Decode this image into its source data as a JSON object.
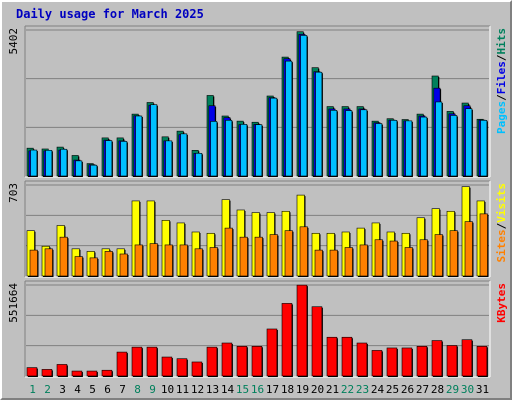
{
  "title": "Daily usage for March 2025",
  "chart_data": [
    {
      "type": "bar",
      "panel": "hits-files-pages",
      "ymax_label": "5402",
      "ylim": [
        0,
        5402
      ],
      "grid": true,
      "categories": [
        "1",
        "2",
        "3",
        "4",
        "5",
        "6",
        "7",
        "8",
        "9",
        "10",
        "11",
        "12",
        "13",
        "14",
        "15",
        "16",
        "17",
        "18",
        "19",
        "20",
        "21",
        "22",
        "23",
        "24",
        "25",
        "26",
        "27",
        "28",
        "29",
        "30",
        "31"
      ],
      "weekend_days": [
        "1",
        "2",
        "8",
        "9",
        "15",
        "16",
        "22",
        "23",
        "29",
        "30"
      ],
      "series": [
        {
          "name": "Hits",
          "color": "#00805c",
          "values": [
            1030,
            1000,
            1070,
            760,
            460,
            1410,
            1410,
            2290,
            2720,
            1450,
            1660,
            950,
            2980,
            2220,
            2030,
            1990,
            2960,
            4400,
            5340,
            4010,
            2570,
            2570,
            2570,
            2030,
            2120,
            2090,
            2290,
            3700,
            2390,
            2700,
            2100
          ]
        },
        {
          "name": "Files",
          "color": "#0000e6",
          "values": [
            930,
            930,
            960,
            590,
            420,
            1330,
            1300,
            2230,
            2620,
            1300,
            1530,
            840,
            2600,
            2160,
            1900,
            1910,
            2900,
            4340,
            5240,
            3860,
            2480,
            2480,
            2480,
            1970,
            2070,
            2040,
            2220,
            3250,
            2300,
            2600,
            2070
          ]
        },
        {
          "name": "Pages",
          "color": "#00c0ff",
          "values": [
            960,
            950,
            990,
            560,
            400,
            1310,
            1280,
            2220,
            2640,
            1300,
            1560,
            840,
            2020,
            2060,
            1910,
            1900,
            2880,
            4250,
            5200,
            3840,
            2430,
            2420,
            2450,
            1940,
            2060,
            2040,
            2180,
            2740,
            2240,
            2490,
            2060
          ]
        }
      ],
      "axis_label_parts": [
        "Pages",
        "/",
        "Files",
        "/",
        "Hits"
      ]
    },
    {
      "type": "bar",
      "panel": "visits-sites",
      "ymax_label": "703",
      "ylim": [
        0,
        703
      ],
      "grid": true,
      "series": [
        {
          "name": "Visits",
          "color": "#ffff00",
          "values": [
            350,
            230,
            390,
            210,
            190,
            210,
            210,
            580,
            580,
            430,
            410,
            340,
            330,
            590,
            510,
            490,
            490,
            500,
            625,
            330,
            330,
            340,
            370,
            410,
            340,
            330,
            450,
            520,
            500,
            690,
            580
          ]
        },
        {
          "name": "Sites",
          "color": "#ff8000",
          "values": [
            200,
            210,
            300,
            150,
            140,
            190,
            170,
            240,
            250,
            240,
            240,
            210,
            220,
            370,
            300,
            300,
            320,
            350,
            380,
            200,
            200,
            220,
            240,
            280,
            270,
            220,
            280,
            320,
            350,
            420,
            480
          ]
        }
      ],
      "axis_label_parts": [
        "Sites",
        "/",
        "Visits"
      ]
    },
    {
      "type": "bar",
      "panel": "kbytes",
      "ymax_label": "551664",
      "ylim": [
        0,
        551664
      ],
      "grid": true,
      "series": [
        {
          "name": "KBytes",
          "color": "#ff0000",
          "values": [
            51000,
            40000,
            70000,
            30000,
            30000,
            35000,
            145000,
            175000,
            175000,
            115000,
            105000,
            85000,
            175000,
            200000,
            180000,
            180000,
            285000,
            440000,
            551000,
            420000,
            235000,
            235000,
            200000,
            155000,
            170000,
            170000,
            180000,
            215000,
            185000,
            220000,
            180000
          ]
        }
      ],
      "axis_label_parts": [
        "KBytes"
      ]
    }
  ],
  "colors": {
    "title": "#0000c0",
    "weekend_label": "#00805c",
    "weekday_label": "#000000",
    "plot_bg": "#c0c0c0",
    "grid": "#808080"
  }
}
